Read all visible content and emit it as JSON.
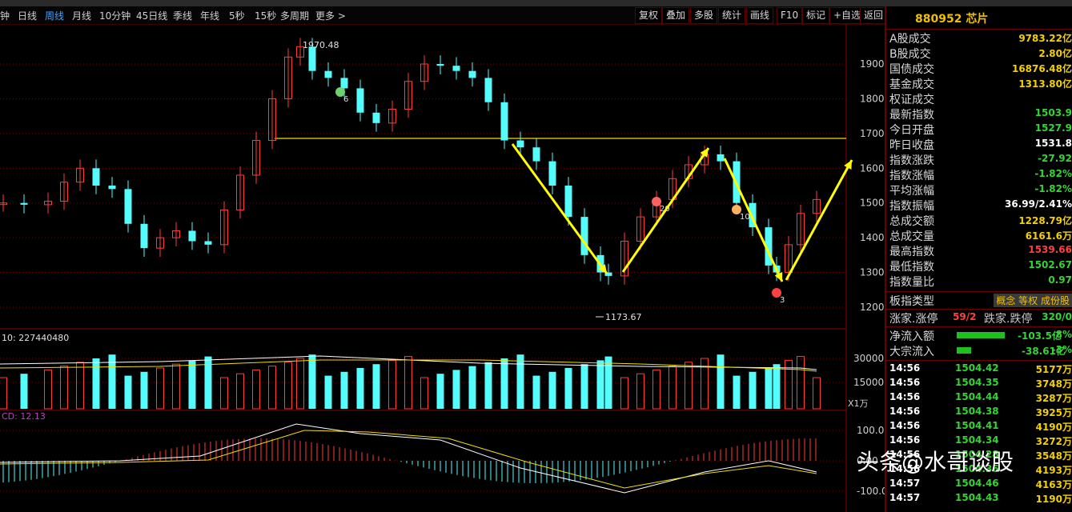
{
  "toolbar": {
    "periods": [
      "钟",
      "日线",
      "周线",
      "月线",
      "10分钟",
      "45日线",
      "季线",
      "年线",
      "5秒",
      "15秒",
      "多周期",
      "更多 >"
    ],
    "active_index": 2,
    "buttons": [
      "复权",
      "叠加",
      "多股",
      "统计",
      "画线",
      "F10",
      "标记",
      "+自选",
      "返回"
    ]
  },
  "chart": {
    "price_axis_labels": [
      "1900",
      "1800",
      "1700",
      "1600",
      "1500",
      "1400",
      "1300",
      "1200"
    ],
    "high_marker": "1970.48",
    "low_marker": "1173.67",
    "badges": [
      "6",
      "20",
      "10",
      "3"
    ],
    "volume_label": "10: 227440480",
    "volume_axis_labels": [
      "30000",
      "15000"
    ],
    "volume_unit": "X1万",
    "macd_label": "CD: 12.13",
    "macd_axis_labels": [
      "100.0",
      "0.00",
      "-100.0"
    ]
  },
  "panel": {
    "code": "880952 芯片",
    "stats": [
      {
        "label": "A股成交",
        "value": "9783.22亿",
        "color": "yellow"
      },
      {
        "label": "B股成交",
        "value": "2.80亿",
        "color": "yellow"
      },
      {
        "label": "国债成交",
        "value": "16876.48亿",
        "color": "yellow"
      },
      {
        "label": "基金成交",
        "value": "1313.80亿",
        "color": "yellow"
      },
      {
        "label": "权证成交",
        "value": "",
        "color": "yellow"
      },
      {
        "label": "最新指数",
        "value": "1503.9",
        "color": "green"
      },
      {
        "label": "今日开盘",
        "value": "1527.9",
        "color": "green"
      },
      {
        "label": "昨日收盘",
        "value": "1531.8",
        "color": "white"
      },
      {
        "label": "指数涨跌",
        "value": "-27.92",
        "color": "green"
      },
      {
        "label": "指数涨幅",
        "value": "-1.82%",
        "color": "green"
      },
      {
        "label": "平均涨幅",
        "value": "-1.82%",
        "color": "green"
      },
      {
        "label": "指数振幅",
        "value": "36.99/2.41%",
        "color": "white"
      },
      {
        "label": "总成交额",
        "value": "1228.79亿",
        "color": "yellow"
      },
      {
        "label": "总成交量",
        "value": "6161.6万",
        "color": "yellow"
      },
      {
        "label": "最高指数",
        "value": "1539.66",
        "color": "red"
      },
      {
        "label": "最低指数",
        "value": "1502.67",
        "color": "green"
      },
      {
        "label": "指数量比",
        "value": "0.97",
        "color": "green"
      }
    ],
    "board_type_label": "板指类型",
    "board_type_value": "概念 等权 成份股",
    "updown_label": "涨家.涨停",
    "updown_value": "59/2",
    "downup_label": "跌家.跌停",
    "downup_value": "320/0",
    "net_inflow_label": "净流入额",
    "net_inflow_value": "-103.5亿",
    "net_inflow_pct": "-8%",
    "block_inflow_label": "大宗流入",
    "block_inflow_value": "-38.61亿",
    "block_inflow_pct": "-3%",
    "ticks": [
      {
        "time": "14:56",
        "price": "1504.42",
        "vol": "5177万"
      },
      {
        "time": "14:56",
        "price": "1504.35",
        "vol": "3748万"
      },
      {
        "time": "14:56",
        "price": "1504.44",
        "vol": "3287万"
      },
      {
        "time": "14:56",
        "price": "1504.38",
        "vol": "3925万"
      },
      {
        "time": "14:56",
        "price": "1504.41",
        "vol": "4190万"
      },
      {
        "time": "14:56",
        "price": "1504.34",
        "vol": "3272万"
      },
      {
        "time": "14:56",
        "price": "1504.28",
        "vol": "3548万"
      },
      {
        "time": "14:56",
        "price": "1504.36",
        "vol": "4193万"
      },
      {
        "time": "14:57",
        "price": "1504.46",
        "vol": "4163万"
      },
      {
        "time": "14:57",
        "price": "1504.43",
        "vol": "1190万"
      }
    ]
  },
  "watermark": "头条@水哥谈股"
}
